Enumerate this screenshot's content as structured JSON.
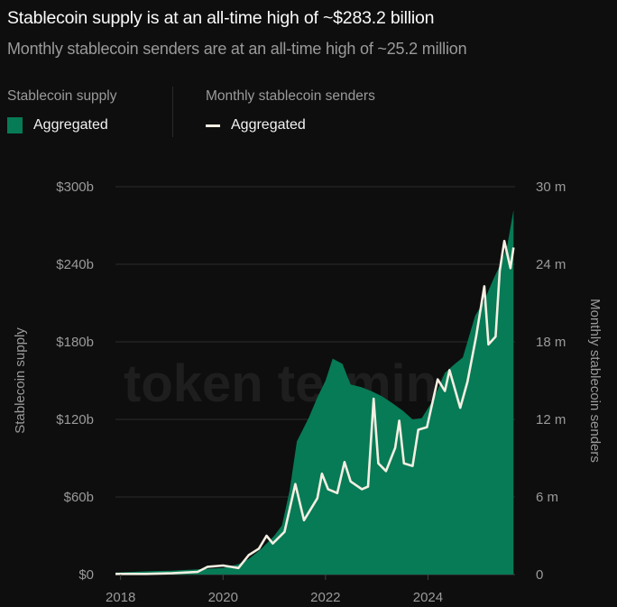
{
  "header": {
    "title": "Stablecoin supply is at an all-time high of ~$283.2 billion",
    "subtitle": "Monthly stablecoin senders are at an all-time high of ~25.2 million"
  },
  "legend": {
    "left_heading": "Stablecoin supply",
    "left_item": "Aggregated",
    "right_heading": "Monthly stablecoin senders",
    "right_item": "Aggregated"
  },
  "watermark": "token terminal_",
  "chart_data": {
    "type": "area+line",
    "ylabel_left": "Stablecoin supply",
    "ylabel_right": "Monthly stablecoin senders",
    "ylim_left": [
      0,
      300
    ],
    "ylim_right": [
      0,
      30
    ],
    "xlim": [
      2017.9,
      2025.7
    ],
    "grid": true,
    "x_ticks": [
      "2018",
      "2020",
      "2022",
      "2024"
    ],
    "y_ticks_left": [
      "$0",
      "$60b",
      "$120b",
      "$180b",
      "$240b",
      "$300b"
    ],
    "y_ticks_right": [
      "0",
      "6 m",
      "12 m",
      "18 m",
      "24 m",
      "30 m"
    ],
    "colors": {
      "supply": "#077a56",
      "senders": "#f4efe2",
      "background": "#0e0e0e"
    },
    "series": [
      {
        "name": "Aggregated",
        "axis": "left",
        "unit": "$b",
        "kind": "area",
        "x": [
          2017.9,
          2018.5,
          2019.0,
          2019.5,
          2020.0,
          2020.3,
          2020.5,
          2020.75,
          2021.0,
          2021.15,
          2021.3,
          2021.44,
          2021.67,
          2021.84,
          2022.0,
          2022.14,
          2022.33,
          2022.49,
          2022.7,
          2022.89,
          2023.1,
          2023.29,
          2023.5,
          2023.7,
          2023.88,
          2024.1,
          2024.33,
          2024.5,
          2024.68,
          2024.92,
          2025.1,
          2025.27,
          2025.44,
          2025.55,
          2025.67
        ],
        "values": [
          1.5,
          2.5,
          3,
          4,
          5,
          8,
          12,
          20,
          30,
          38,
          65,
          103,
          121,
          137,
          150,
          167,
          163,
          147,
          145,
          142,
          138,
          133,
          127,
          120,
          121,
          135,
          156,
          162,
          168,
          200,
          212,
          228,
          242,
          255,
          282
        ]
      },
      {
        "name": "Aggregated",
        "axis": "right",
        "unit": "m",
        "kind": "line",
        "x": [
          2017.9,
          2018.5,
          2019.0,
          2019.5,
          2019.7,
          2020.0,
          2020.3,
          2020.5,
          2020.7,
          2020.85,
          2020.97,
          2021.2,
          2021.41,
          2021.58,
          2021.84,
          2021.93,
          2022.05,
          2022.23,
          2022.37,
          2022.49,
          2022.71,
          2022.83,
          2022.94,
          2023.03,
          2023.18,
          2023.36,
          2023.44,
          2023.53,
          2023.7,
          2023.81,
          2023.98,
          2024.19,
          2024.33,
          2024.42,
          2024.63,
          2024.77,
          2024.94,
          2025.1,
          2025.18,
          2025.32,
          2025.4,
          2025.49,
          2025.61,
          2025.67
        ],
        "values": [
          0.05,
          0.05,
          0.1,
          0.2,
          0.6,
          0.7,
          0.5,
          1.5,
          2.0,
          3.0,
          2.4,
          3.3,
          7.0,
          4.2,
          5.9,
          7.8,
          6.6,
          6.3,
          8.7,
          7.2,
          6.6,
          6.8,
          13.6,
          8.6,
          8.0,
          9.8,
          11.9,
          8.6,
          8.4,
          11.2,
          11.4,
          15.1,
          14.2,
          15.8,
          12.9,
          14.9,
          18.4,
          22.3,
          17.8,
          18.4,
          23.5,
          25.8,
          23.7,
          25.3
        ]
      }
    ]
  }
}
